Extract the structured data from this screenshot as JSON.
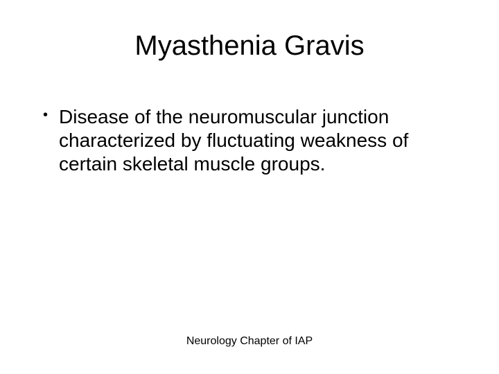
{
  "slide": {
    "title": "Myasthenia Gravis",
    "bullets": [
      {
        "marker": "•",
        "text": "Disease of the neuromuscular junction characterized by fluctuating weakness of certain skeletal muscle groups."
      }
    ],
    "footer": "Neurology Chapter of IAP"
  },
  "style": {
    "background_color": "#ffffff",
    "text_color": "#000000",
    "title_fontsize": 40,
    "body_fontsize": 28,
    "footer_fontsize": 16,
    "font_family": "Arial"
  }
}
